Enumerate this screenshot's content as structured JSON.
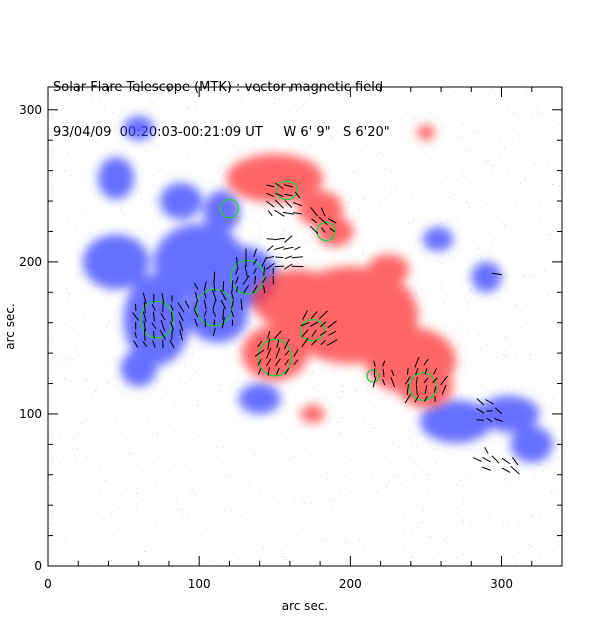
{
  "title": "Solar Flare Telescope (MTK) : vector magnetic field",
  "subtitle": "93/04/09  00:20:03-00:21:09 UT     W 6' 9\"   S 6'20\"",
  "x_axis": {
    "label": "arc sec.",
    "range": [
      0,
      340
    ],
    "ticks": [
      {
        "value": 0,
        "label": "0"
      },
      {
        "value": 100,
        "label": "100"
      },
      {
        "value": 200,
        "label": "200"
      },
      {
        "value": 300,
        "label": "300"
      }
    ],
    "minor_step": 20
  },
  "y_axis": {
    "label": "arc sec.",
    "range": [
      0,
      315
    ],
    "ticks": [
      {
        "value": 0,
        "label": "0"
      },
      {
        "value": 100,
        "label": "100"
      },
      {
        "value": 200,
        "label": "200"
      },
      {
        "value": 300,
        "label": "300"
      }
    ],
    "minor_step": 20
  },
  "colors": {
    "positive_polarity": "#ff3c3c",
    "negative_polarity": "#3c46ff",
    "contour": "#22cc44",
    "vector": "#000000",
    "noise": "#9aa0e6"
  },
  "regions": {
    "negative": [
      {
        "x": 72,
        "y": 162,
        "rx": 22,
        "ry": 30
      },
      {
        "x": 100,
        "y": 200,
        "rx": 30,
        "ry": 25
      },
      {
        "x": 130,
        "y": 190,
        "rx": 22,
        "ry": 20
      },
      {
        "x": 112,
        "y": 165,
        "rx": 20,
        "ry": 18
      },
      {
        "x": 45,
        "y": 200,
        "rx": 22,
        "ry": 18
      },
      {
        "x": 115,
        "y": 233,
        "rx": 12,
        "ry": 14
      },
      {
        "x": 140,
        "y": 110,
        "rx": 14,
        "ry": 10
      },
      {
        "x": 45,
        "y": 255,
        "rx": 12,
        "ry": 14
      },
      {
        "x": 88,
        "y": 240,
        "rx": 14,
        "ry": 12
      },
      {
        "x": 60,
        "y": 130,
        "rx": 12,
        "ry": 12
      },
      {
        "x": 270,
        "y": 95,
        "rx": 24,
        "ry": 14
      },
      {
        "x": 305,
        "y": 100,
        "rx": 20,
        "ry": 12
      },
      {
        "x": 290,
        "y": 190,
        "rx": 10,
        "ry": 10
      },
      {
        "x": 258,
        "y": 215,
        "rx": 10,
        "ry": 8
      },
      {
        "x": 320,
        "y": 80,
        "rx": 14,
        "ry": 12
      },
      {
        "x": 60,
        "y": 288,
        "rx": 10,
        "ry": 8
      }
    ],
    "positive": [
      {
        "x": 150,
        "y": 255,
        "rx": 32,
        "ry": 16
      },
      {
        "x": 180,
        "y": 235,
        "rx": 15,
        "ry": 12
      },
      {
        "x": 190,
        "y": 220,
        "rx": 12,
        "ry": 10
      },
      {
        "x": 150,
        "y": 140,
        "rx": 22,
        "ry": 18
      },
      {
        "x": 178,
        "y": 155,
        "rx": 18,
        "ry": 14
      },
      {
        "x": 200,
        "y": 165,
        "rx": 45,
        "ry": 32
      },
      {
        "x": 240,
        "y": 135,
        "rx": 30,
        "ry": 22
      },
      {
        "x": 250,
        "y": 118,
        "rx": 18,
        "ry": 14
      },
      {
        "x": 165,
        "y": 175,
        "rx": 30,
        "ry": 20
      },
      {
        "x": 225,
        "y": 195,
        "rx": 14,
        "ry": 10
      },
      {
        "x": 175,
        "y": 100,
        "rx": 8,
        "ry": 6
      },
      {
        "x": 250,
        "y": 285,
        "rx": 6,
        "ry": 5
      }
    ]
  },
  "contours": [
    {
      "x": 72,
      "y": 162,
      "rx": 11,
      "ry": 12
    },
    {
      "x": 110,
      "y": 170,
      "rx": 12,
      "ry": 12
    },
    {
      "x": 132,
      "y": 190,
      "rx": 11,
      "ry": 11
    },
    {
      "x": 150,
      "y": 137,
      "rx": 11,
      "ry": 12
    },
    {
      "x": 175,
      "y": 155,
      "rx": 8,
      "ry": 7
    },
    {
      "x": 248,
      "y": 118,
      "rx": 9,
      "ry": 9
    },
    {
      "x": 158,
      "y": 247,
      "rx": 7,
      "ry": 6
    },
    {
      "x": 120,
      "y": 235,
      "rx": 6,
      "ry": 6
    },
    {
      "x": 184,
      "y": 220,
      "rx": 6,
      "ry": 6
    },
    {
      "x": 215,
      "y": 125,
      "rx": 4,
      "ry": 4
    }
  ],
  "vector_clusters": [
    {
      "x": 72,
      "y": 160,
      "r": 20,
      "angle": 110
    },
    {
      "x": 110,
      "y": 172,
      "r": 18,
      "angle": 95
    },
    {
      "x": 135,
      "y": 192,
      "r": 16,
      "angle": 80
    },
    {
      "x": 150,
      "y": 138,
      "r": 16,
      "angle": 60
    },
    {
      "x": 178,
      "y": 155,
      "r": 14,
      "angle": 40
    },
    {
      "x": 248,
      "y": 120,
      "r": 16,
      "angle": 70
    },
    {
      "x": 220,
      "y": 125,
      "r": 10,
      "angle": 90
    },
    {
      "x": 155,
      "y": 240,
      "r": 14,
      "angle": 150
    },
    {
      "x": 180,
      "y": 225,
      "r": 10,
      "angle": 130
    },
    {
      "x": 290,
      "y": 100,
      "r": 10,
      "angle": 160
    },
    {
      "x": 305,
      "y": 65,
      "r": 8,
      "angle": 150
    },
    {
      "x": 290,
      "y": 70,
      "r": 6,
      "angle": 140
    },
    {
      "x": 295,
      "y": 190,
      "r": 4,
      "angle": 170
    },
    {
      "x": 155,
      "y": 205,
      "r": 14,
      "angle": 20
    }
  ]
}
